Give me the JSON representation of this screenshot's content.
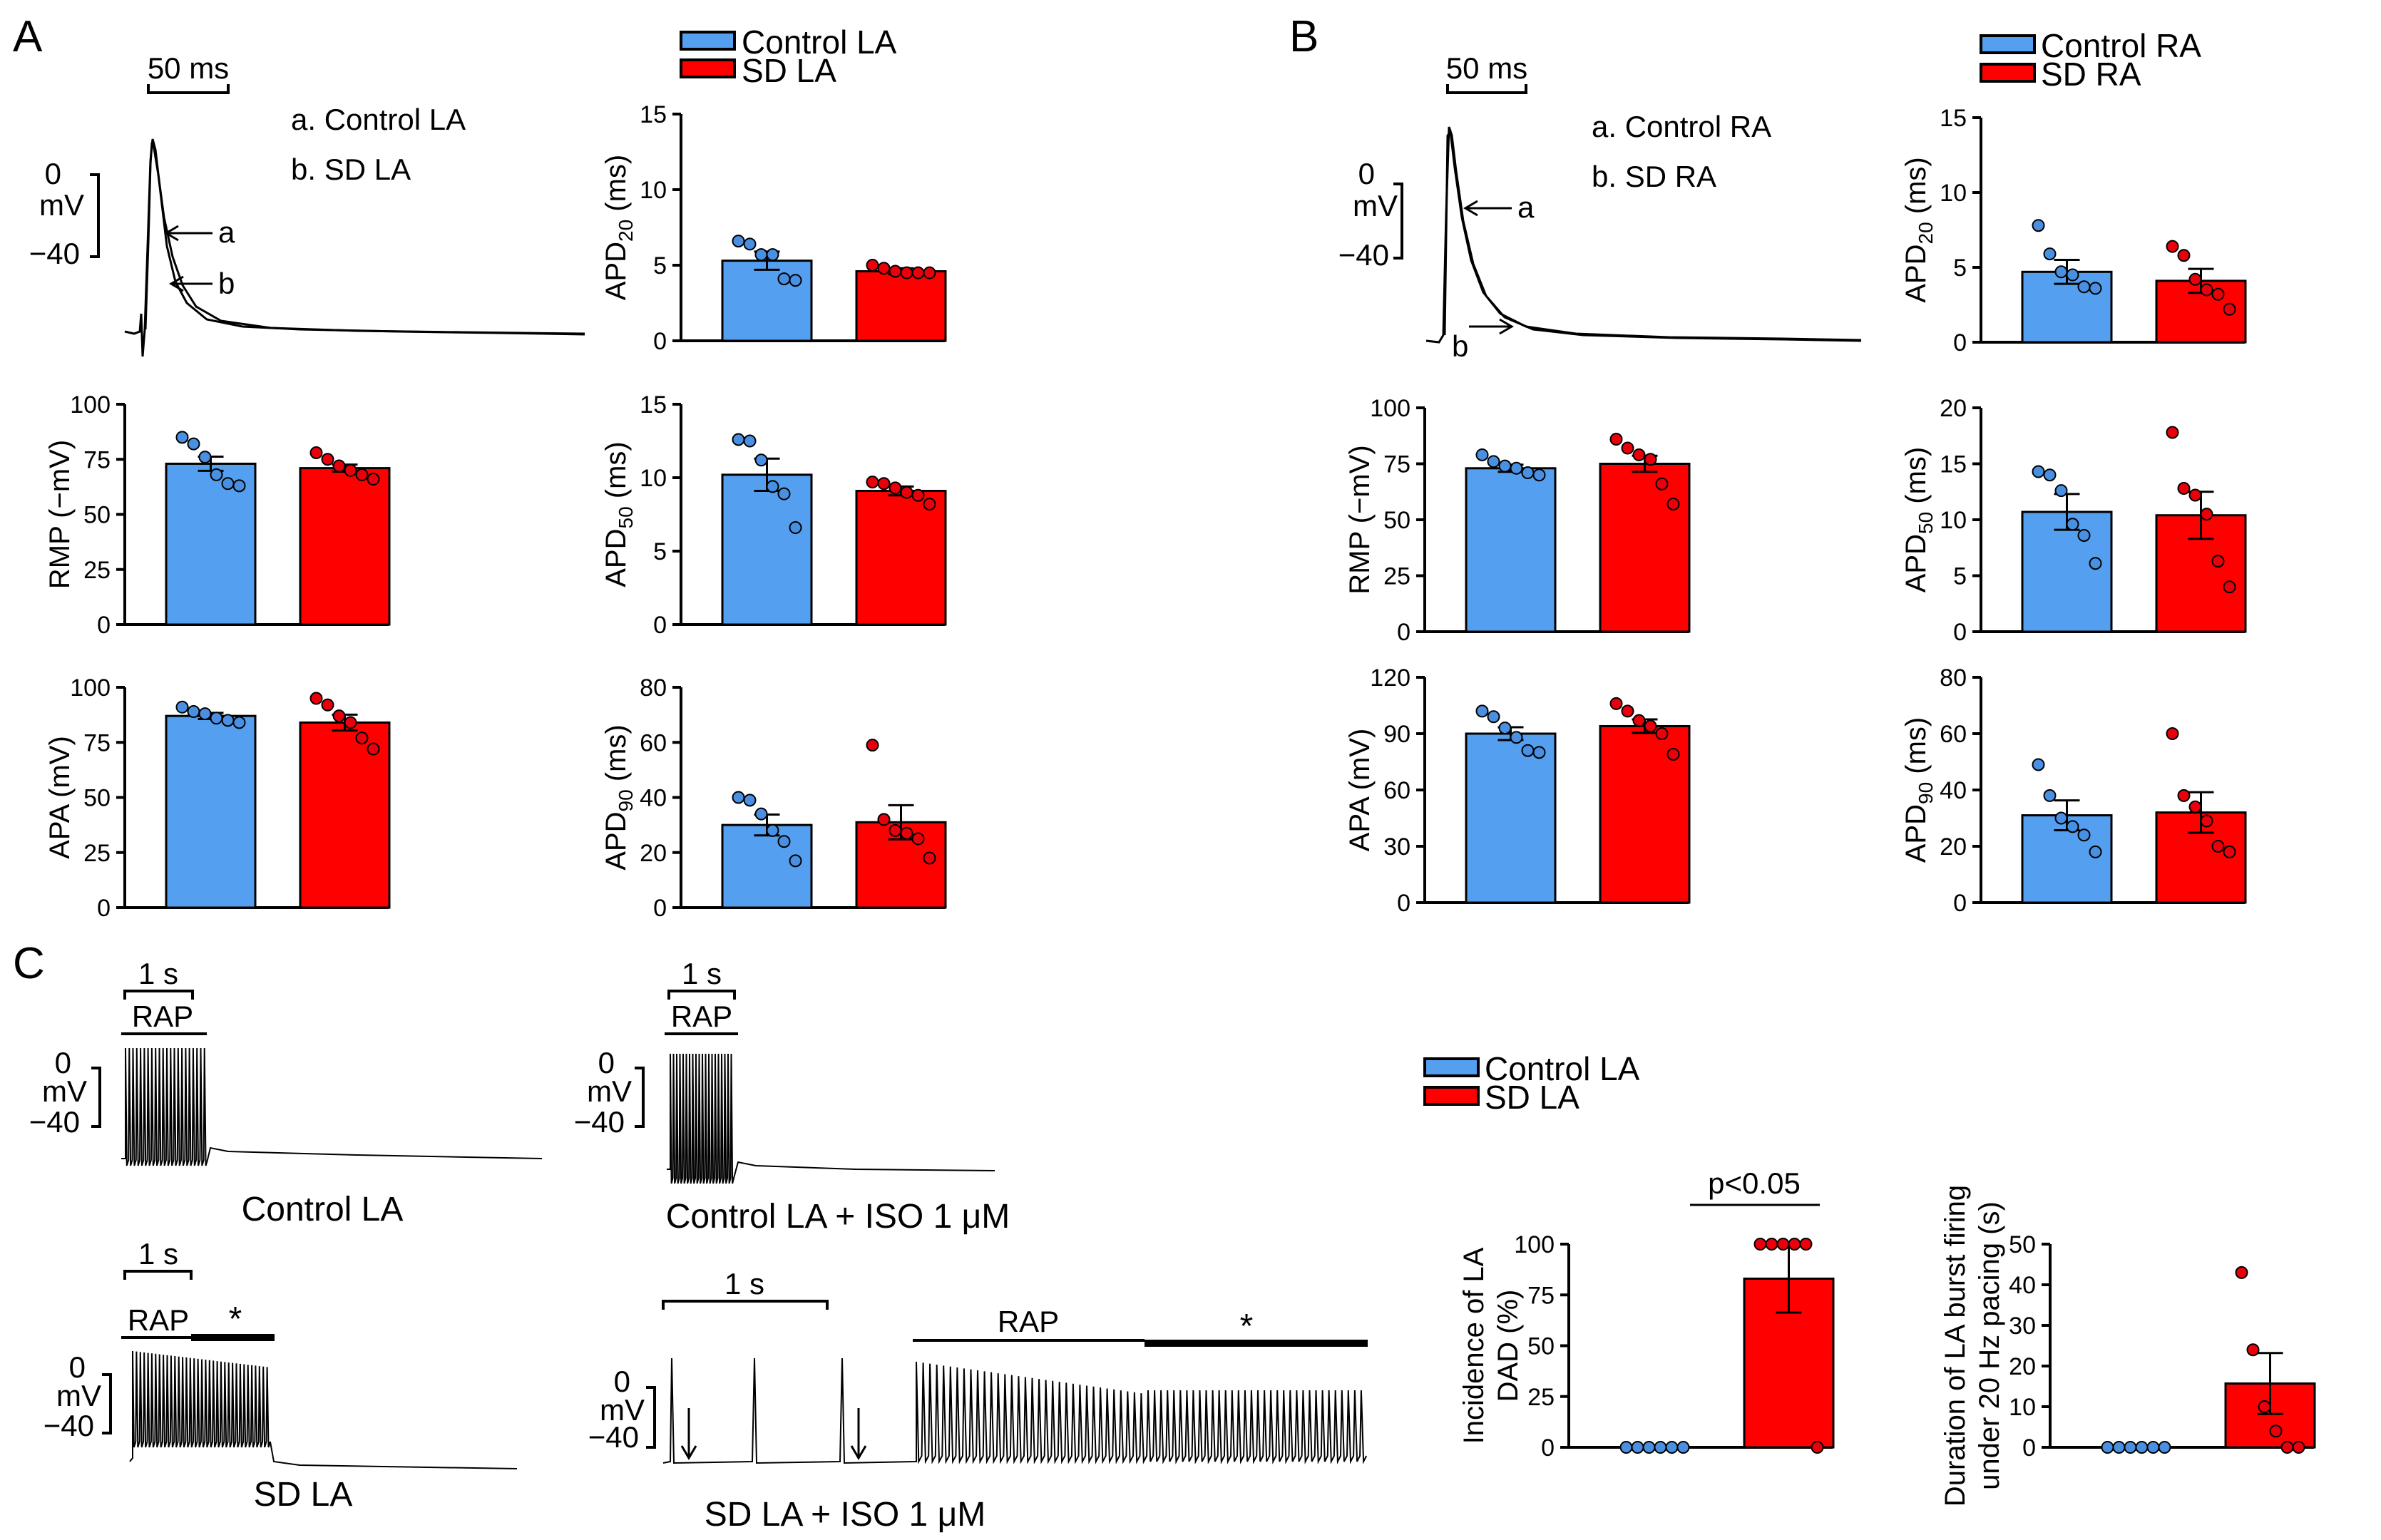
{
  "panels": {
    "A": {
      "letter": "A",
      "scale_bar": "50 ms",
      "trace_labels": [
        "a. Control LA",
        "b. SD LA"
      ],
      "trace_axis": [
        "0",
        "mV",
        "−40"
      ],
      "arrow_labels": [
        "a",
        "b"
      ],
      "legend": [
        "Control LA",
        "SD LA"
      ]
    },
    "B": {
      "letter": "B",
      "scale_bar": "50 ms",
      "trace_labels": [
        "a. Control RA",
        "b. SD RA"
      ],
      "trace_axis": [
        "0",
        "mV",
        "−40"
      ],
      "arrow_labels": [
        "a",
        "b"
      ],
      "legend": [
        "Control RA",
        "SD RA"
      ]
    },
    "C": {
      "letter": "C",
      "traces": [
        {
          "caption": "Control LA",
          "scale": "1 s",
          "rap": "RAP",
          "axis": [
            "0",
            "mV",
            "−40"
          ]
        },
        {
          "caption": "Control LA + ISO 1 μM",
          "scale": "1 s",
          "rap": "RAP",
          "axis": [
            "0",
            "mV",
            "−40"
          ]
        },
        {
          "caption": "SD LA",
          "scale": "1 s",
          "rap": "RAP",
          "star": "*",
          "axis": [
            "0",
            "mV",
            "−40"
          ]
        },
        {
          "caption": "SD LA + ISO 1 μM",
          "scale": "1 s",
          "rap": "RAP",
          "star": "*",
          "axis": [
            "0",
            "mV",
            "−40"
          ]
        }
      ],
      "legend": [
        "Control LA",
        "SD LA"
      ],
      "pvalue": "p<0.05"
    }
  },
  "colors": {
    "control": "#559ff0",
    "sd": "#ff0000",
    "control_dot": "#4a90e2",
    "sd_dot": "#e8000b",
    "black": "#000000"
  },
  "chart_data": [
    {
      "id": "A-apd20",
      "type": "bar",
      "title": "",
      "ylabel": "APD20 (ms)",
      "ylabel_main": "APD",
      "ylabel_sub": "20",
      "ylabel_unit": "(ms)",
      "ylim": [
        0,
        15
      ],
      "ticks": [
        0,
        5,
        10,
        15
      ],
      "categories": [
        "Control LA",
        "SD LA"
      ],
      "values": [
        5.3,
        4.6
      ],
      "errors": [
        0.6,
        0.2
      ],
      "points": [
        [
          6.6,
          6.4,
          5.7,
          5.7,
          4.1,
          4.0
        ],
        [
          5.0,
          4.8,
          4.6,
          4.5,
          4.5,
          4.5
        ]
      ]
    },
    {
      "id": "A-rmp",
      "type": "bar",
      "title": "",
      "ylabel": "RMP (−mV)",
      "ylim": [
        0,
        100
      ],
      "ticks": [
        0,
        25,
        50,
        75,
        100
      ],
      "categories": [
        "Control LA",
        "SD LA"
      ],
      "values": [
        73,
        71
      ],
      "errors": [
        3.2,
        1.6
      ],
      "points": [
        [
          85,
          82,
          76,
          68,
          64,
          63
        ],
        [
          78,
          75,
          72,
          70,
          68,
          66
        ]
      ]
    },
    {
      "id": "A-apd50",
      "type": "bar",
      "title": "",
      "ylabel": "APD50 (ms)",
      "ylabel_main": "APD",
      "ylabel_sub": "50",
      "ylabel_unit": "(ms)",
      "ylim": [
        0,
        15
      ],
      "ticks": [
        0,
        5,
        10,
        15
      ],
      "categories": [
        "Control LA",
        "SD LA"
      ],
      "values": [
        10.2,
        9.1
      ],
      "errors": [
        1.1,
        0.3
      ],
      "points": [
        [
          12.6,
          12.5,
          11.2,
          9.4,
          8.9,
          6.6
        ],
        [
          9.7,
          9.6,
          9.3,
          9.0,
          8.8,
          8.2
        ]
      ]
    },
    {
      "id": "A-apa",
      "type": "bar",
      "title": "",
      "ylabel": "APA (mV)",
      "ylim": [
        0,
        100
      ],
      "ticks": [
        0,
        25,
        50,
        75,
        100
      ],
      "categories": [
        "Control LA",
        "SD LA"
      ],
      "values": [
        87,
        84
      ],
      "errors": [
        1.4,
        3.6
      ],
      "points": [
        [
          91,
          89,
          88,
          86,
          85,
          84
        ],
        [
          95,
          92,
          87,
          84,
          77,
          72
        ]
      ]
    },
    {
      "id": "A-apd90",
      "type": "bar",
      "title": "",
      "ylabel": "APD90 (ms)",
      "ylabel_main": "APD",
      "ylabel_sub": "90",
      "ylabel_unit": "(ms)",
      "ylim": [
        0,
        80
      ],
      "ticks": [
        0,
        20,
        40,
        60,
        80
      ],
      "categories": [
        "Control LA",
        "SD LA"
      ],
      "values": [
        30,
        31
      ],
      "errors": [
        3.8,
        6.2
      ],
      "points": [
        [
          40,
          39,
          34,
          28,
          24,
          17
        ],
        [
          59,
          32,
          28,
          27,
          25,
          18
        ]
      ]
    },
    {
      "id": "B-apd20",
      "type": "bar",
      "title": "",
      "ylabel": "APD20 (ms)",
      "ylabel_main": "APD",
      "ylabel_sub": "20",
      "ylabel_unit": "(ms)",
      "ylim": [
        0,
        15
      ],
      "ticks": [
        0,
        5,
        10,
        15
      ],
      "categories": [
        "Control RA",
        "SD RA"
      ],
      "values": [
        4.7,
        4.1
      ],
      "errors": [
        0.8,
        0.8
      ],
      "points": [
        [
          7.8,
          5.9,
          4.7,
          4.5,
          3.7,
          3.6
        ],
        [
          6.4,
          5.8,
          4.2,
          3.5,
          3.2,
          2.2
        ]
      ]
    },
    {
      "id": "B-rmp",
      "type": "bar",
      "title": "",
      "ylabel": "RMP (−mV)",
      "ylim": [
        0,
        100
      ],
      "ticks": [
        0,
        25,
        50,
        75,
        100
      ],
      "categories": [
        "Control RA",
        "SD RA"
      ],
      "values": [
        73,
        75
      ],
      "errors": [
        1.6,
        3.6
      ],
      "points": [
        [
          79,
          76,
          74,
          73,
          71,
          70
        ],
        [
          86,
          82,
          79,
          77,
          66,
          57
        ]
      ]
    },
    {
      "id": "B-apd50",
      "type": "bar",
      "title": "",
      "ylabel": "APD50 (ms)",
      "ylabel_main": "APD",
      "ylabel_sub": "50",
      "ylabel_unit": "(ms)",
      "ylim": [
        0,
        20
      ],
      "ticks": [
        0,
        5,
        10,
        15,
        20
      ],
      "categories": [
        "Control RA",
        "SD RA"
      ],
      "values": [
        10.7,
        10.4
      ],
      "errors": [
        1.6,
        2.1
      ],
      "points": [
        [
          14.3,
          14.0,
          12.6,
          9.6,
          8.6,
          6.1
        ],
        [
          17.8,
          12.8,
          12.2,
          10.5,
          6.3,
          4.0
        ]
      ]
    },
    {
      "id": "B-apa",
      "type": "bar",
      "title": "",
      "ylabel": "APA (mV)",
      "ylim": [
        0,
        120
      ],
      "ticks": [
        0,
        30,
        60,
        90,
        120
      ],
      "categories": [
        "Control RA",
        "SD RA"
      ],
      "values": [
        90,
        94
      ],
      "errors": [
        3.4,
        3.6
      ],
      "points": [
        [
          102,
          99,
          93,
          88,
          81,
          80
        ],
        [
          106,
          102,
          97,
          94,
          90,
          79
        ]
      ]
    },
    {
      "id": "B-apd90",
      "type": "bar",
      "title": "",
      "ylabel": "APD90 (ms)",
      "ylabel_main": "APD",
      "ylabel_sub": "90",
      "ylabel_unit": "(ms)",
      "ylim": [
        0,
        80
      ],
      "ticks": [
        0,
        20,
        40,
        60,
        80
      ],
      "categories": [
        "Control RA",
        "SD RA"
      ],
      "values": [
        31,
        32
      ],
      "errors": [
        5.3,
        7.2
      ],
      "points": [
        [
          49,
          38,
          30,
          27,
          24,
          18
        ],
        [
          60,
          38,
          34,
          29,
          20,
          18
        ]
      ]
    },
    {
      "id": "C-dad",
      "type": "bar",
      "title": "",
      "ylabel": "Incidence of LA DAD (%)",
      "ylabel_lines": [
        "Incidence of LA",
        "DAD (%)"
      ],
      "ylim": [
        0,
        100
      ],
      "ticks": [
        0,
        25,
        50,
        75,
        100
      ],
      "categories": [
        "Control LA",
        "SD LA"
      ],
      "values": [
        0,
        83
      ],
      "errors": [
        0,
        16.7
      ],
      "points": [
        [
          0,
          0,
          0,
          0,
          0,
          0
        ],
        [
          100,
          100,
          100,
          100,
          100,
          0
        ]
      ]
    },
    {
      "id": "C-burst",
      "type": "bar",
      "title": "",
      "ylabel": "Duration of LA burst firing under 20 Hz pacing (s)",
      "ylabel_lines": [
        "Duration of LA burst firing",
        "under 20 Hz pacing (s)"
      ],
      "ylim": [
        0,
        50
      ],
      "ticks": [
        0,
        10,
        20,
        30,
        40,
        50
      ],
      "categories": [
        "Control LA",
        "SD LA"
      ],
      "values": [
        0,
        15.7
      ],
      "errors": [
        0,
        7.5
      ],
      "points": [
        [
          0,
          0,
          0,
          0,
          0,
          0
        ],
        [
          43,
          24,
          10,
          4,
          0,
          0
        ]
      ]
    }
  ]
}
